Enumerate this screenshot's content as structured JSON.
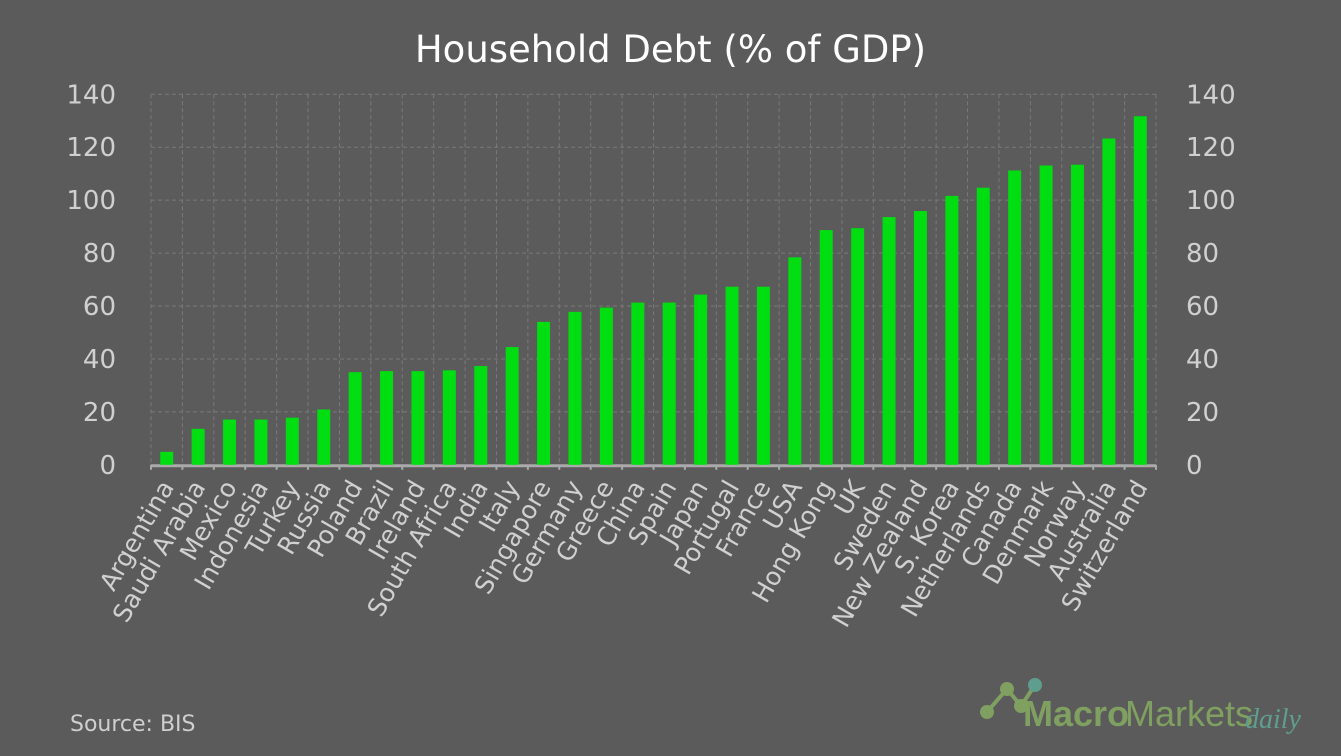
{
  "chart_data": {
    "type": "bar",
    "title": "Household Debt (% of GDP)",
    "categories": [
      "Argentina",
      "Saudi Arabia",
      "Mexico",
      "Indonesia",
      "Turkey",
      "Russia",
      "Poland",
      "Brazil",
      "Ireland",
      "South Africa",
      "India",
      "Italy",
      "Singapore",
      "Germany",
      "Greece",
      "China",
      "Spain",
      "Japan",
      "Portugal",
      "France",
      "USA",
      "Hong Kong",
      "UK",
      "Sweden",
      "New Zealand",
      "S. Korea",
      "Netherlands",
      "Canada",
      "Denmark",
      "Norway",
      "Australia",
      "Switzerland"
    ],
    "values": [
      4.9,
      13.6,
      17.1,
      17.1,
      17.8,
      20.9,
      35.0,
      35.4,
      35.4,
      35.7,
      37.3,
      44.5,
      54.0,
      57.8,
      59.4,
      61.3,
      61.3,
      64.3,
      67.3,
      67.3,
      78.4,
      88.7,
      89.4,
      93.6,
      95.9,
      101.6,
      104.7,
      111.2,
      113.1,
      113.4,
      123.3,
      131.7
    ],
    "ylim": [
      0,
      140
    ],
    "yticks": [
      0,
      20,
      40,
      60,
      80,
      100,
      120,
      140
    ],
    "y_axis_both_sides": true,
    "grid": true,
    "bar_color": "#00dd11",
    "background": "#5b5b5b"
  },
  "source": "Source: BIS",
  "logo": {
    "text_bold": "Macro",
    "text_regular": "Markets",
    "text_script": "daily"
  }
}
